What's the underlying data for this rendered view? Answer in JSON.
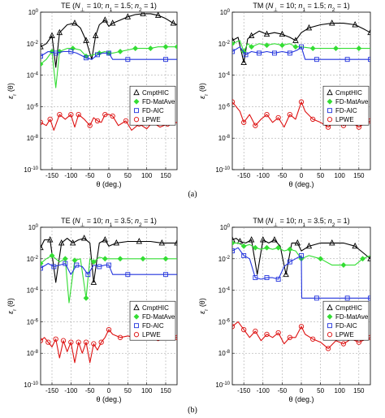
{
  "colors": {
    "CmptHIC": "#000000",
    "FD-MatAve": "#33dd33",
    "FD-AIC": "#2233dd",
    "LPWE": "#dd1111"
  },
  "captions": [
    "(a)",
    "(b)"
  ],
  "chart_data": [
    {
      "type": "line",
      "title_parts": [
        "TE (",
        "N",
        "⊥",
        " = 10; ",
        "n",
        "1",
        " = 1.5; ",
        "n",
        "2",
        " = 1)"
      ],
      "xlabel": "θ (deg.)",
      "ylabel_parts": [
        "ε",
        "r",
        " (θ)"
      ],
      "xlim": [
        -180,
        180
      ],
      "ylim_log10": [
        -10,
        0
      ],
      "yscale": "log",
      "xticks": [
        -150,
        -100,
        -50,
        0,
        50,
        100,
        150
      ],
      "yticks": [
        "10^0",
        "10^-2",
        "10^-4",
        "10^-6",
        "10^-8",
        "10^-10"
      ],
      "grid": true,
      "legend_position": "middle-right",
      "legend": [
        "CmptHIC",
        "FD-MatAve",
        "FD-AIC",
        "LPWE"
      ],
      "series": [
        {
          "name": "CmptHIC",
          "marker": "triangle",
          "x": [
            -180,
            -165,
            -150,
            -140,
            -130,
            -110,
            -90,
            -75,
            -60,
            -45,
            -35,
            -25,
            -10,
            0,
            10,
            30,
            50,
            70,
            90,
            110,
            130,
            150,
            170,
            180
          ],
          "log10_y": [
            -2.2,
            -2.0,
            -1.5,
            -3.5,
            -1.3,
            -0.8,
            -0.7,
            -1.0,
            -1.8,
            -3.0,
            -1.5,
            -0.8,
            -0.5,
            -0.9,
            -0.7,
            -0.5,
            -0.3,
            -0.15,
            -0.1,
            -0.1,
            -0.2,
            -0.4,
            -0.7,
            -0.8
          ]
        },
        {
          "name": "FD-MatAve",
          "marker": "diamond",
          "x": [
            -180,
            -165,
            -150,
            -140,
            -130,
            -110,
            -95,
            -75,
            -60,
            -40,
            -25,
            -10,
            0,
            10,
            30,
            50,
            70,
            90,
            110,
            130,
            150,
            170,
            180
          ],
          "log10_y": [
            -3.3,
            -3.0,
            -2.5,
            -4.8,
            -2.5,
            -2.3,
            -2.3,
            -2.4,
            -2.8,
            -2.7,
            -2.6,
            -2.5,
            -2.6,
            -2.6,
            -2.5,
            -2.4,
            -2.3,
            -2.3,
            -2.3,
            -2.2,
            -2.2,
            -2.2,
            -2.2
          ]
        },
        {
          "name": "FD-AIC",
          "marker": "square",
          "x": [
            -180,
            -160,
            -140,
            -120,
            -100,
            -85,
            -60,
            -45,
            -30,
            -15,
            0,
            10,
            50,
            100,
            150,
            180
          ],
          "log10_y": [
            -2.8,
            -2.5,
            -2.6,
            -2.5,
            -2.5,
            -2.6,
            -2.9,
            -3.0,
            -2.7,
            -2.6,
            -2.6,
            -3.0,
            -3.0,
            -3.0,
            -3.0,
            -3.0
          ]
        },
        {
          "name": "LPWE",
          "marker": "circle",
          "x": [
            -180,
            -165,
            -155,
            -145,
            -130,
            -115,
            -100,
            -90,
            -80,
            -65,
            -50,
            -40,
            -30,
            -20,
            -10,
            0,
            10,
            25,
            45,
            60,
            80,
            100,
            115,
            135,
            155,
            180
          ],
          "log10_y": [
            -7.0,
            -7.2,
            -6.8,
            -7.5,
            -6.5,
            -6.8,
            -6.5,
            -7.3,
            -6.5,
            -6.8,
            -7.2,
            -6.7,
            -6.9,
            -7.0,
            -6.5,
            -6.5,
            -6.6,
            -7.2,
            -6.9,
            -7.5,
            -7.1,
            -7.4,
            -7.0,
            -7.3,
            -7.1,
            -7.0
          ]
        }
      ]
    },
    {
      "type": "line",
      "title_parts": [
        "TM (",
        "N",
        "⊥",
        " = 10; ",
        "n",
        "1",
        " = 1.5; ",
        "n",
        "2",
        " = 1)"
      ],
      "xlabel": "θ (deg.)",
      "ylabel_parts": [
        "ε",
        "r",
        " (θ)"
      ],
      "xlim": [
        -180,
        180
      ],
      "ylim_log10": [
        -10,
        0
      ],
      "yscale": "log",
      "xticks": [
        -150,
        -100,
        -50,
        0,
        50,
        100,
        150
      ],
      "yticks": [
        "10^0",
        "10^-2",
        "10^-4",
        "10^-6",
        "10^-8",
        "10^-10"
      ],
      "grid": true,
      "legend_position": "middle-right",
      "legend": [
        "CmptHIC",
        "FD-MatAve",
        "FD-AIC",
        "LPWE"
      ],
      "series": [
        {
          "name": "CmptHIC",
          "marker": "triangle",
          "x": [
            -180,
            -165,
            -150,
            -140,
            -130,
            -110,
            -90,
            -70,
            -50,
            -30,
            -15,
            0,
            20,
            50,
            80,
            110,
            140,
            165,
            180
          ],
          "log10_y": [
            -1.8,
            -1.6,
            -3.2,
            -1.7,
            -1.5,
            -1.2,
            -1.4,
            -1.3,
            -1.4,
            -1.6,
            -1.8,
            -1.3,
            -1.0,
            -0.8,
            -0.7,
            -0.7,
            -0.8,
            -1.1,
            -1.3
          ]
        },
        {
          "name": "FD-MatAve",
          "marker": "diamond",
          "x": [
            -180,
            -160,
            -150,
            -140,
            -130,
            -110,
            -90,
            -70,
            -50,
            -30,
            -15,
            0,
            30,
            60,
            90,
            120,
            150,
            180
          ],
          "log10_y": [
            -2.0,
            -1.8,
            -2.5,
            -2.0,
            -2.2,
            -2.0,
            -2.1,
            -2.0,
            -2.1,
            -2.0,
            -2.2,
            -2.2,
            -2.3,
            -2.3,
            -2.3,
            -2.3,
            -2.3,
            -2.3
          ]
        },
        {
          "name": "FD-AIC",
          "marker": "square",
          "x": [
            -180,
            -160,
            -145,
            -130,
            -110,
            -90,
            -70,
            -50,
            -30,
            -10,
            0,
            10,
            40,
            80,
            120,
            160,
            180
          ],
          "log10_y": [
            -2.5,
            -2.2,
            -2.7,
            -2.5,
            -2.6,
            -2.5,
            -2.6,
            -2.5,
            -2.6,
            -2.4,
            -2.2,
            -3.0,
            -3.0,
            -3.0,
            -3.0,
            -3.0,
            -3.0
          ]
        },
        {
          "name": "LPWE",
          "marker": "circle",
          "x": [
            -180,
            -160,
            -150,
            -135,
            -120,
            -105,
            -90,
            -75,
            -60,
            -45,
            -30,
            -15,
            0,
            10,
            30,
            50,
            70,
            90,
            110,
            130,
            150,
            170,
            180
          ],
          "log10_y": [
            -5.7,
            -6.3,
            -7.0,
            -6.5,
            -7.2,
            -6.8,
            -6.5,
            -7.0,
            -6.7,
            -7.3,
            -6.5,
            -6.8,
            -5.7,
            -6.3,
            -6.8,
            -7.0,
            -7.3,
            -6.9,
            -7.2,
            -7.0,
            -7.3,
            -7.0,
            -6.9
          ]
        }
      ]
    },
    {
      "type": "line",
      "title_parts": [
        "TE (",
        "N",
        "⊥",
        " = 10; ",
        "n",
        "1",
        " = 3.5; ",
        "n",
        "2",
        " = 1)"
      ],
      "xlabel": "θ (deg.)",
      "ylabel_parts": [
        "ε",
        "r",
        " (θ)"
      ],
      "xlim": [
        -180,
        180
      ],
      "ylim_log10": [
        -10,
        0
      ],
      "yscale": "log",
      "xticks": [
        -150,
        -100,
        -50,
        0,
        50,
        100,
        150
      ],
      "yticks": [
        "10^0",
        "10^-2",
        "10^-4",
        "10^-6",
        "10^-8",
        "10^-10"
      ],
      "grid": true,
      "legend_position": "middle-right",
      "legend": [
        "CmptHIC",
        "FD-MatAve",
        "FD-AIC",
        "LPWE"
      ],
      "series": [
        {
          "name": "CmptHIC",
          "marker": "triangle",
          "x": [
            -180,
            -170,
            -155,
            -140,
            -125,
            -110,
            -95,
            -80,
            -65,
            -50,
            -40,
            -25,
            -10,
            0,
            20,
            50,
            80,
            110,
            140,
            170,
            180
          ],
          "log10_y": [
            -1.3,
            -0.8,
            -0.8,
            -3.5,
            -1.0,
            -0.7,
            -1.0,
            -0.8,
            -0.7,
            -1.0,
            -3.5,
            -1.0,
            -0.8,
            -1.2,
            -1.0,
            -0.9,
            -0.9,
            -0.9,
            -1.0,
            -1.0,
            -1.0
          ]
        },
        {
          "name": "FD-MatAve",
          "marker": "diamond",
          "x": [
            -180,
            -165,
            -150,
            -130,
            -115,
            -105,
            -90,
            -75,
            -60,
            -50,
            -40,
            -25,
            -10,
            0,
            30,
            60,
            90,
            120,
            150,
            180
          ],
          "log10_y": [
            -2.3,
            -2.0,
            -1.8,
            -2.2,
            -2.0,
            -4.8,
            -2.1,
            -2.0,
            -4.5,
            -2.0,
            -2.2,
            -1.9,
            -2.0,
            -2.0,
            -2.0,
            -2.0,
            -2.0,
            -2.0,
            -2.0,
            -2.0
          ]
        },
        {
          "name": "FD-AIC",
          "marker": "square",
          "x": [
            -180,
            -160,
            -145,
            -130,
            -115,
            -100,
            -85,
            -70,
            -55,
            -40,
            -25,
            -10,
            0,
            10,
            50,
            100,
            150,
            180
          ],
          "log10_y": [
            -2.6,
            -2.3,
            -2.5,
            -2.4,
            -2.3,
            -3.0,
            -2.4,
            -2.5,
            -3.0,
            -2.4,
            -2.5,
            -2.4,
            -2.4,
            -3.0,
            -3.0,
            -3.0,
            -3.0,
            -3.0
          ]
        },
        {
          "name": "LPWE",
          "marker": "circle",
          "x": [
            -180,
            -170,
            -160,
            -150,
            -140,
            -130,
            -120,
            -110,
            -100,
            -90,
            -80,
            -70,
            -60,
            -50,
            -40,
            -30,
            -20,
            -10,
            0,
            10,
            30,
            50,
            70,
            90,
            110,
            130,
            150,
            170,
            180
          ],
          "log10_y": [
            -7.2,
            -7.0,
            -7.3,
            -7.6,
            -7.1,
            -8.3,
            -7.2,
            -7.9,
            -7.3,
            -8.6,
            -7.3,
            -8.0,
            -7.3,
            -8.6,
            -7.4,
            -7.8,
            -7.3,
            -7.0,
            -6.5,
            -6.8,
            -7.0,
            -6.9,
            -7.0,
            -7.1,
            -7.0,
            -7.2,
            -7.0,
            -7.0,
            -7.0
          ]
        }
      ]
    },
    {
      "type": "line",
      "title_parts": [
        "TM (",
        "N",
        "⊥",
        " = 10; ",
        "n",
        "1",
        " = 3.5; ",
        "n",
        "2",
        " = 1)"
      ],
      "xlabel": "θ (deg.)",
      "ylabel_parts": [
        "ε",
        "r",
        " (θ)"
      ],
      "xlim": [
        -180,
        180
      ],
      "ylim_log10": [
        -10,
        0
      ],
      "yscale": "log",
      "xticks": [
        -150,
        -100,
        -50,
        0,
        50,
        100,
        150
      ],
      "yticks": [
        "10^0",
        "10^-2",
        "10^-4",
        "10^-6",
        "10^-8",
        "10^-10"
      ],
      "grid": true,
      "legend_position": "middle-right",
      "legend": [
        "CmptHIC",
        "FD-MatAve",
        "FD-AIC",
        "LPWE"
      ],
      "series": [
        {
          "name": "CmptHIC",
          "marker": "triangle",
          "x": [
            -180,
            -170,
            -160,
            -145,
            -130,
            -115,
            -100,
            -85,
            -70,
            -55,
            -40,
            -25,
            -10,
            0,
            20,
            50,
            80,
            110,
            140,
            160,
            180
          ],
          "log10_y": [
            -0.8,
            -0.7,
            -0.9,
            -1.0,
            -0.8,
            -3.0,
            -0.8,
            -1.0,
            -0.8,
            -1.2,
            -3.0,
            -1.0,
            -1.0,
            -1.5,
            -1.2,
            -1.0,
            -1.0,
            -1.0,
            -1.2,
            -1.6,
            -2.0
          ]
        },
        {
          "name": "FD-MatAve",
          "marker": "diamond",
          "x": [
            -180,
            -165,
            -150,
            -135,
            -120,
            -105,
            -90,
            -75,
            -60,
            -45,
            -30,
            -15,
            0,
            20,
            50,
            80,
            110,
            140,
            160,
            180
          ],
          "log10_y": [
            -1.0,
            -1.0,
            -1.2,
            -1.1,
            -1.3,
            -1.4,
            -1.3,
            -1.4,
            -1.3,
            -1.5,
            -1.4,
            -1.5,
            -2.0,
            -1.8,
            -2.0,
            -2.4,
            -2.4,
            -2.4,
            -2.0,
            -1.8
          ]
        },
        {
          "name": "FD-AIC",
          "marker": "square",
          "x": [
            -180,
            -165,
            -150,
            -135,
            -120,
            -105,
            -90,
            -75,
            -60,
            -45,
            -30,
            -15,
            0,
            1,
            40,
            80,
            120,
            160,
            180
          ],
          "log10_y": [
            -1.5,
            -1.3,
            -1.8,
            -2.0,
            -3.2,
            -3.3,
            -3.2,
            -3.2,
            -3.3,
            -2.5,
            -2.2,
            -2.0,
            -1.8,
            -4.5,
            -4.5,
            -4.5,
            -4.5,
            -4.5,
            -4.5
          ]
        },
        {
          "name": "LPWE",
          "marker": "circle",
          "x": [
            -180,
            -165,
            -150,
            -135,
            -120,
            -105,
            -90,
            -75,
            -60,
            -45,
            -30,
            -15,
            0,
            10,
            30,
            50,
            70,
            90,
            110,
            130,
            150,
            170,
            180
          ],
          "log10_y": [
            -6.3,
            -6.0,
            -6.5,
            -7.0,
            -6.6,
            -7.2,
            -6.8,
            -7.0,
            -6.7,
            -7.4,
            -7.0,
            -7.0,
            -6.3,
            -6.8,
            -7.1,
            -7.3,
            -7.7,
            -7.2,
            -7.4,
            -7.1,
            -7.3,
            -7.1,
            -7.0
          ]
        }
      ]
    }
  ]
}
